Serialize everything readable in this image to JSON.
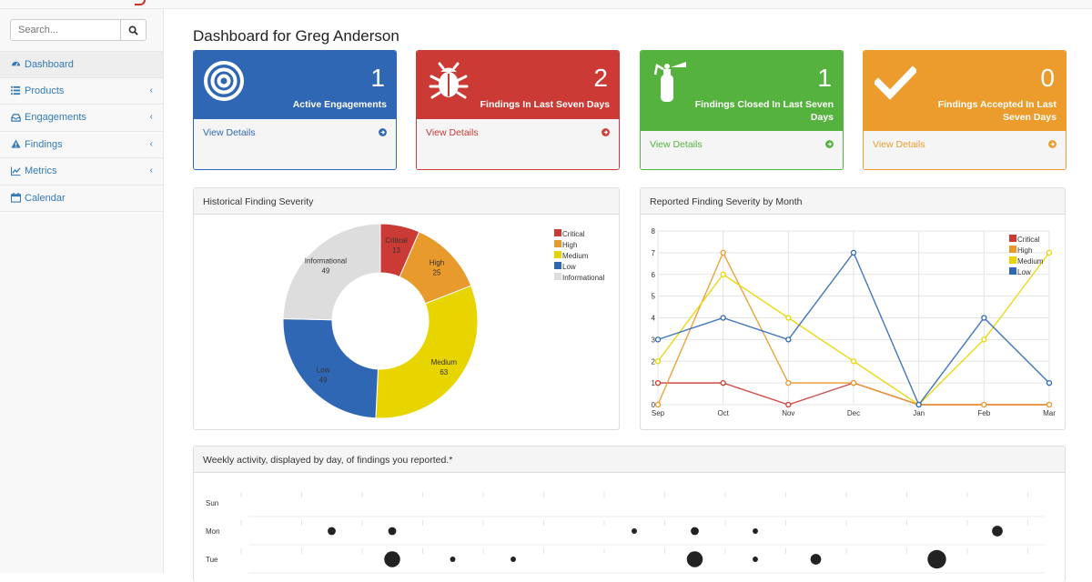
{
  "search": {
    "placeholder": "Search..."
  },
  "sidebar": {
    "items": [
      {
        "label": "Dashboard",
        "icon": "dashboard-icon",
        "active": true,
        "chevron": false
      },
      {
        "label": "Products",
        "icon": "list-icon",
        "active": false,
        "chevron": true
      },
      {
        "label": "Engagements",
        "icon": "inbox-icon",
        "active": false,
        "chevron": true
      },
      {
        "label": "Findings",
        "icon": "warning-icon",
        "active": false,
        "chevron": true
      },
      {
        "label": "Metrics",
        "icon": "line-chart-icon",
        "active": false,
        "chevron": true
      },
      {
        "label": "Calendar",
        "icon": "calendar-icon",
        "active": false,
        "chevron": false
      }
    ],
    "chevron": "‹"
  },
  "page_title": "Dashboard for Greg Anderson",
  "cards": [
    {
      "count": "1",
      "label": "Active Engagements",
      "link": "View Details",
      "color": "#2f67b5",
      "icon": "target-icon"
    },
    {
      "count": "2",
      "label": "Findings In Last Seven Days",
      "link": "View Details",
      "color": "#cc3a35",
      "icon": "bug-icon"
    },
    {
      "count": "1",
      "label": "Findings Closed In Last Seven Days",
      "link": "View Details",
      "color": "#55b23e",
      "icon": "fire-extinguisher-icon"
    },
    {
      "count": "0",
      "label": "Findings Accepted In Last Seven Days",
      "link": "View Details",
      "color": "#eb9c2c",
      "icon": "check-icon"
    }
  ],
  "panels": {
    "severity_title": "Historical Finding Severity",
    "monthly_title": "Reported Finding Severity by Month",
    "weekly_title": "Weekly activity, displayed by day, of findings you reported.*"
  },
  "chart_data": [
    {
      "type": "pie",
      "title": "Historical Finding Severity",
      "categories": [
        "Critical",
        "High",
        "Medium",
        "Low",
        "Informational"
      ],
      "values": [
        13,
        25,
        63,
        49,
        49
      ],
      "colors": [
        "#cc3a35",
        "#e89a2c",
        "#e8d500",
        "#2f67b5",
        "#dddddd"
      ],
      "legend": "top-right"
    },
    {
      "type": "line",
      "title": "Reported Finding Severity by Month",
      "categories": [
        "Sep",
        "Oct",
        "Nov",
        "Dec",
        "Jan",
        "Feb",
        "Mar"
      ],
      "ylim": [
        0,
        8
      ],
      "yticks": [
        "0",
        "1",
        "2",
        "3",
        "4",
        "5",
        "6",
        "7",
        "8"
      ],
      "series": [
        {
          "name": "Critical",
          "color": "#cc3a35",
          "values": [
            1,
            1,
            0,
            1,
            0,
            0,
            0
          ]
        },
        {
          "name": "High",
          "color": "#e89a2c",
          "values": [
            0,
            7,
            1,
            1,
            0,
            0,
            0
          ]
        },
        {
          "name": "Medium",
          "color": "#e8d500",
          "values": [
            2,
            6,
            4,
            2,
            0,
            3,
            7
          ]
        },
        {
          "name": "Low",
          "color": "#2f67b5",
          "values": [
            3,
            4,
            3,
            7,
            0,
            4,
            1
          ]
        }
      ],
      "legend": "top-right",
      "grid": true
    },
    {
      "type": "scatter",
      "title": "Weekly activity, displayed by day, of findings you reported.*",
      "rows": [
        "Sun",
        "Mon",
        "Tue"
      ],
      "columns": 13,
      "values": [
        [
          0,
          0,
          0,
          0,
          0,
          0,
          0,
          0,
          0,
          0,
          0,
          0,
          0
        ],
        [
          0,
          2,
          2,
          0,
          0,
          0,
          1,
          2,
          1,
          0,
          0,
          0,
          3
        ],
        [
          0,
          0,
          5,
          1,
          1,
          0,
          0,
          5,
          1,
          3,
          0,
          6,
          0
        ]
      ]
    }
  ]
}
